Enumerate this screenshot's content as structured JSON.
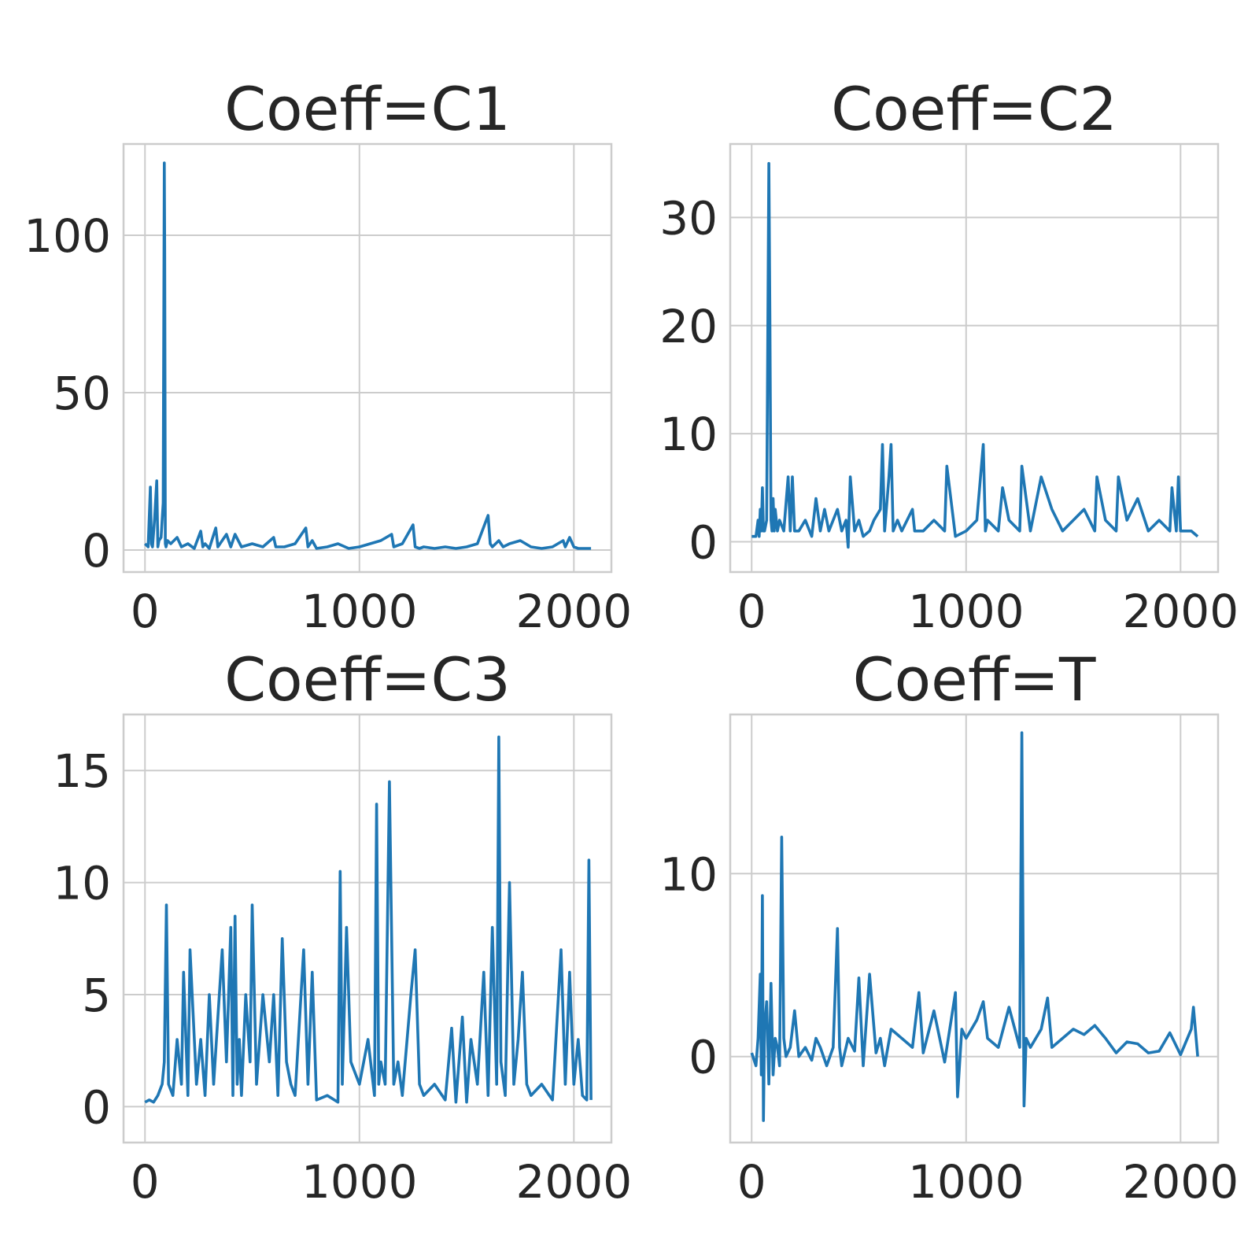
{
  "colors": {
    "line": "#1f77b4",
    "grid": "#cccccc",
    "text": "#262626",
    "background": "#ffffff"
  },
  "chart_data": [
    {
      "type": "line",
      "title": "Coeff=C1",
      "xlabel": "",
      "ylabel": "",
      "grid": true,
      "xlim": [
        -100,
        2175
      ],
      "ylim": [
        -7,
        129
      ],
      "xticks": [
        0,
        1000,
        2000
      ],
      "xtick_labels": [
        "0",
        "1000",
        "2000"
      ],
      "yticks": [
        0,
        50,
        100
      ],
      "ytick_labels": [
        "0",
        "50",
        "100"
      ],
      "series": [
        {
          "x": [
            0,
            15,
            25,
            30,
            35,
            45,
            55,
            60,
            65,
            75,
            85,
            90,
            92,
            95,
            98,
            105,
            120,
            150,
            170,
            200,
            230,
            260,
            270,
            280,
            300,
            330,
            340,
            350,
            380,
            400,
            410,
            420,
            450,
            500,
            550,
            600,
            610,
            650,
            700,
            750,
            760,
            780,
            800,
            850,
            900,
            950,
            1000,
            1050,
            1100,
            1150,
            1160,
            1200,
            1250,
            1260,
            1280,
            1300,
            1350,
            1400,
            1450,
            1500,
            1550,
            1600,
            1610,
            1620,
            1650,
            1670,
            1700,
            1750,
            1800,
            1850,
            1900,
            1950,
            1960,
            1980,
            2000,
            2020,
            2050,
            2080
          ],
          "y": [
            2,
            1,
            20,
            2,
            1,
            10,
            22,
            1,
            3,
            4,
            15,
            123,
            95,
            2,
            1,
            3,
            2,
            4,
            1,
            2,
            0.5,
            6,
            1,
            2,
            0.5,
            7,
            1,
            2,
            5,
            1,
            3,
            5,
            1,
            2,
            1,
            4,
            1,
            1,
            2,
            7,
            1,
            3,
            0.5,
            1,
            2,
            0.5,
            1,
            2,
            3,
            5,
            1,
            2,
            8,
            1,
            0.5,
            1,
            0.5,
            1,
            0.5,
            1,
            2,
            11,
            2,
            1,
            3,
            1,
            2,
            3,
            1,
            0.5,
            1,
            3,
            1,
            4,
            1,
            0.5,
            0.5,
            0.5
          ]
        }
      ]
    },
    {
      "type": "line",
      "title": "Coeff=C2",
      "xlabel": "",
      "ylabel": "",
      "grid": true,
      "xlim": [
        -100,
        2175
      ],
      "ylim": [
        -2.8,
        36.8
      ],
      "xticks": [
        0,
        1000,
        2000
      ],
      "xtick_labels": [
        "0",
        "1000",
        "2000"
      ],
      "yticks": [
        0,
        10,
        20,
        30
      ],
      "ytick_labels": [
        "0",
        "10",
        "20",
        "30"
      ],
      "series": [
        {
          "x": [
            0,
            20,
            30,
            35,
            40,
            45,
            50,
            55,
            60,
            70,
            80,
            85,
            90,
            95,
            100,
            105,
            110,
            120,
            130,
            150,
            170,
            180,
            190,
            200,
            220,
            250,
            280,
            300,
            320,
            340,
            360,
            380,
            400,
            420,
            440,
            450,
            460,
            480,
            500,
            520,
            550,
            570,
            600,
            610,
            620,
            640,
            650,
            660,
            680,
            700,
            750,
            760,
            800,
            850,
            900,
            910,
            950,
            1000,
            1050,
            1080,
            1090,
            1100,
            1150,
            1170,
            1200,
            1250,
            1260,
            1300,
            1350,
            1400,
            1450,
            1500,
            1550,
            1600,
            1610,
            1650,
            1700,
            1710,
            1750,
            1800,
            1850,
            1900,
            1950,
            1960,
            1970,
            1980,
            1990,
            2000,
            2050,
            2080
          ],
          "y": [
            0.5,
            0.5,
            2,
            0.5,
            3,
            1,
            5,
            1,
            1,
            2,
            35,
            21,
            2,
            1,
            4,
            1,
            3,
            1,
            2,
            1,
            6,
            1,
            6,
            1,
            1,
            2,
            0.5,
            4,
            1,
            3,
            1,
            2,
            3,
            1,
            2,
            -0.5,
            6,
            1,
            2,
            0.5,
            1,
            2,
            3,
            9,
            1,
            6,
            9,
            1,
            2,
            1,
            3,
            1,
            1,
            2,
            1,
            7,
            0.5,
            1,
            2,
            9,
            1,
            2,
            1,
            5,
            2,
            1,
            7,
            1,
            6,
            3,
            1,
            2,
            3,
            1,
            6,
            2,
            1,
            6,
            2,
            4,
            1,
            2,
            1,
            5,
            3,
            1,
            6,
            1,
            1,
            0.5
          ]
        }
      ]
    },
    {
      "type": "line",
      "title": "Coeff=C3",
      "xlabel": "",
      "ylabel": "",
      "grid": true,
      "xlim": [
        -100,
        2175
      ],
      "ylim": [
        -1.6,
        17.5
      ],
      "xticks": [
        0,
        1000,
        2000
      ],
      "xtick_labels": [
        "0",
        "1000",
        "2000"
      ],
      "yticks": [
        0,
        5,
        10,
        15
      ],
      "ytick_labels": [
        "0",
        "5",
        "10",
        "15"
      ],
      "series": [
        {
          "x": [
            0,
            20,
            40,
            60,
            80,
            90,
            100,
            110,
            130,
            150,
            170,
            180,
            200,
            210,
            240,
            260,
            280,
            300,
            320,
            340,
            360,
            380,
            400,
            410,
            420,
            430,
            440,
            450,
            470,
            490,
            500,
            520,
            550,
            580,
            600,
            620,
            640,
            660,
            680,
            700,
            740,
            760,
            780,
            800,
            850,
            900,
            910,
            920,
            940,
            960,
            1000,
            1040,
            1070,
            1080,
            1090,
            1100,
            1120,
            1140,
            1160,
            1180,
            1200,
            1240,
            1260,
            1280,
            1300,
            1350,
            1400,
            1430,
            1450,
            1480,
            1500,
            1520,
            1550,
            1580,
            1600,
            1620,
            1640,
            1650,
            1660,
            1680,
            1700,
            1720,
            1740,
            1760,
            1780,
            1800,
            1850,
            1900,
            1940,
            1960,
            1980,
            2000,
            2020,
            2040,
            2060,
            2070,
            2080
          ],
          "y": [
            0.2,
            0.3,
            0.2,
            0.5,
            1,
            2,
            9,
            1,
            0.5,
            3,
            1,
            6,
            0.5,
            7,
            1,
            3,
            0.5,
            5,
            1,
            4,
            7,
            2,
            8,
            0.5,
            8.5,
            1,
            3,
            0.5,
            5,
            2,
            9,
            1,
            5,
            2,
            5,
            0.5,
            7.5,
            2,
            1,
            0.5,
            7,
            1,
            6,
            0.3,
            0.5,
            0.2,
            10.5,
            1,
            8,
            2,
            1,
            3,
            0.5,
            13.5,
            1,
            2,
            1,
            14.5,
            1,
            2,
            0.5,
            5,
            7,
            1,
            0.5,
            1,
            0.3,
            3.5,
            0.2,
            4,
            0.2,
            3,
            1,
            6,
            0.5,
            8,
            1,
            16.5,
            2,
            0.5,
            10,
            1,
            3,
            6,
            1,
            0.5,
            1,
            0.3,
            7,
            1,
            6,
            1,
            3,
            0.5,
            0.3,
            11,
            0.3
          ]
        }
      ]
    },
    {
      "type": "line",
      "title": "Coeff=T",
      "xlabel": "",
      "ylabel": "",
      "grid": true,
      "xlim": [
        -100,
        2175
      ],
      "ylim": [
        -4.7,
        18.7
      ],
      "xticks": [
        0,
        1000,
        2000
      ],
      "xtick_labels": [
        "0",
        "1000",
        "2000"
      ],
      "yticks": [
        0,
        10
      ],
      "ytick_labels": [
        "0",
        "10"
      ],
      "series": [
        {
          "x": [
            0,
            20,
            30,
            40,
            45,
            50,
            55,
            60,
            70,
            80,
            90,
            100,
            110,
            120,
            130,
            140,
            150,
            160,
            180,
            200,
            220,
            250,
            280,
            300,
            320,
            350,
            380,
            400,
            410,
            420,
            450,
            480,
            500,
            520,
            550,
            580,
            600,
            620,
            650,
            700,
            750,
            780,
            800,
            850,
            900,
            950,
            960,
            980,
            1000,
            1050,
            1080,
            1100,
            1150,
            1200,
            1250,
            1260,
            1270,
            1280,
            1300,
            1350,
            1380,
            1400,
            1450,
            1500,
            1550,
            1600,
            1650,
            1700,
            1750,
            1800,
            1850,
            1900,
            1950,
            2000,
            2050,
            2060,
            2080
          ],
          "y": [
            0.2,
            -0.5,
            1,
            4.5,
            -1,
            8.8,
            -3.5,
            1.5,
            3,
            -1.5,
            4,
            -1,
            1,
            0.5,
            -0.5,
            12,
            1,
            0,
            0.5,
            2.5,
            0,
            0.5,
            -0.2,
            1,
            0.5,
            -0.5,
            0.5,
            7,
            0.5,
            -0.5,
            1,
            0.3,
            4.3,
            -0.5,
            4.5,
            0.2,
            1,
            -0.5,
            1.5,
            1,
            0.5,
            3.5,
            0.2,
            2.5,
            -0.3,
            3.5,
            -2.2,
            1.5,
            1,
            2,
            3,
            1,
            0.5,
            2.7,
            0.5,
            17.7,
            -2.7,
            1,
            0.5,
            1.5,
            3.2,
            0.5,
            1,
            1.5,
            1.2,
            1.7,
            1,
            0.2,
            0.8,
            0.7,
            0.2,
            0.3,
            1.3,
            0.1,
            1.5,
            2.7,
            0
          ]
        }
      ]
    }
  ]
}
